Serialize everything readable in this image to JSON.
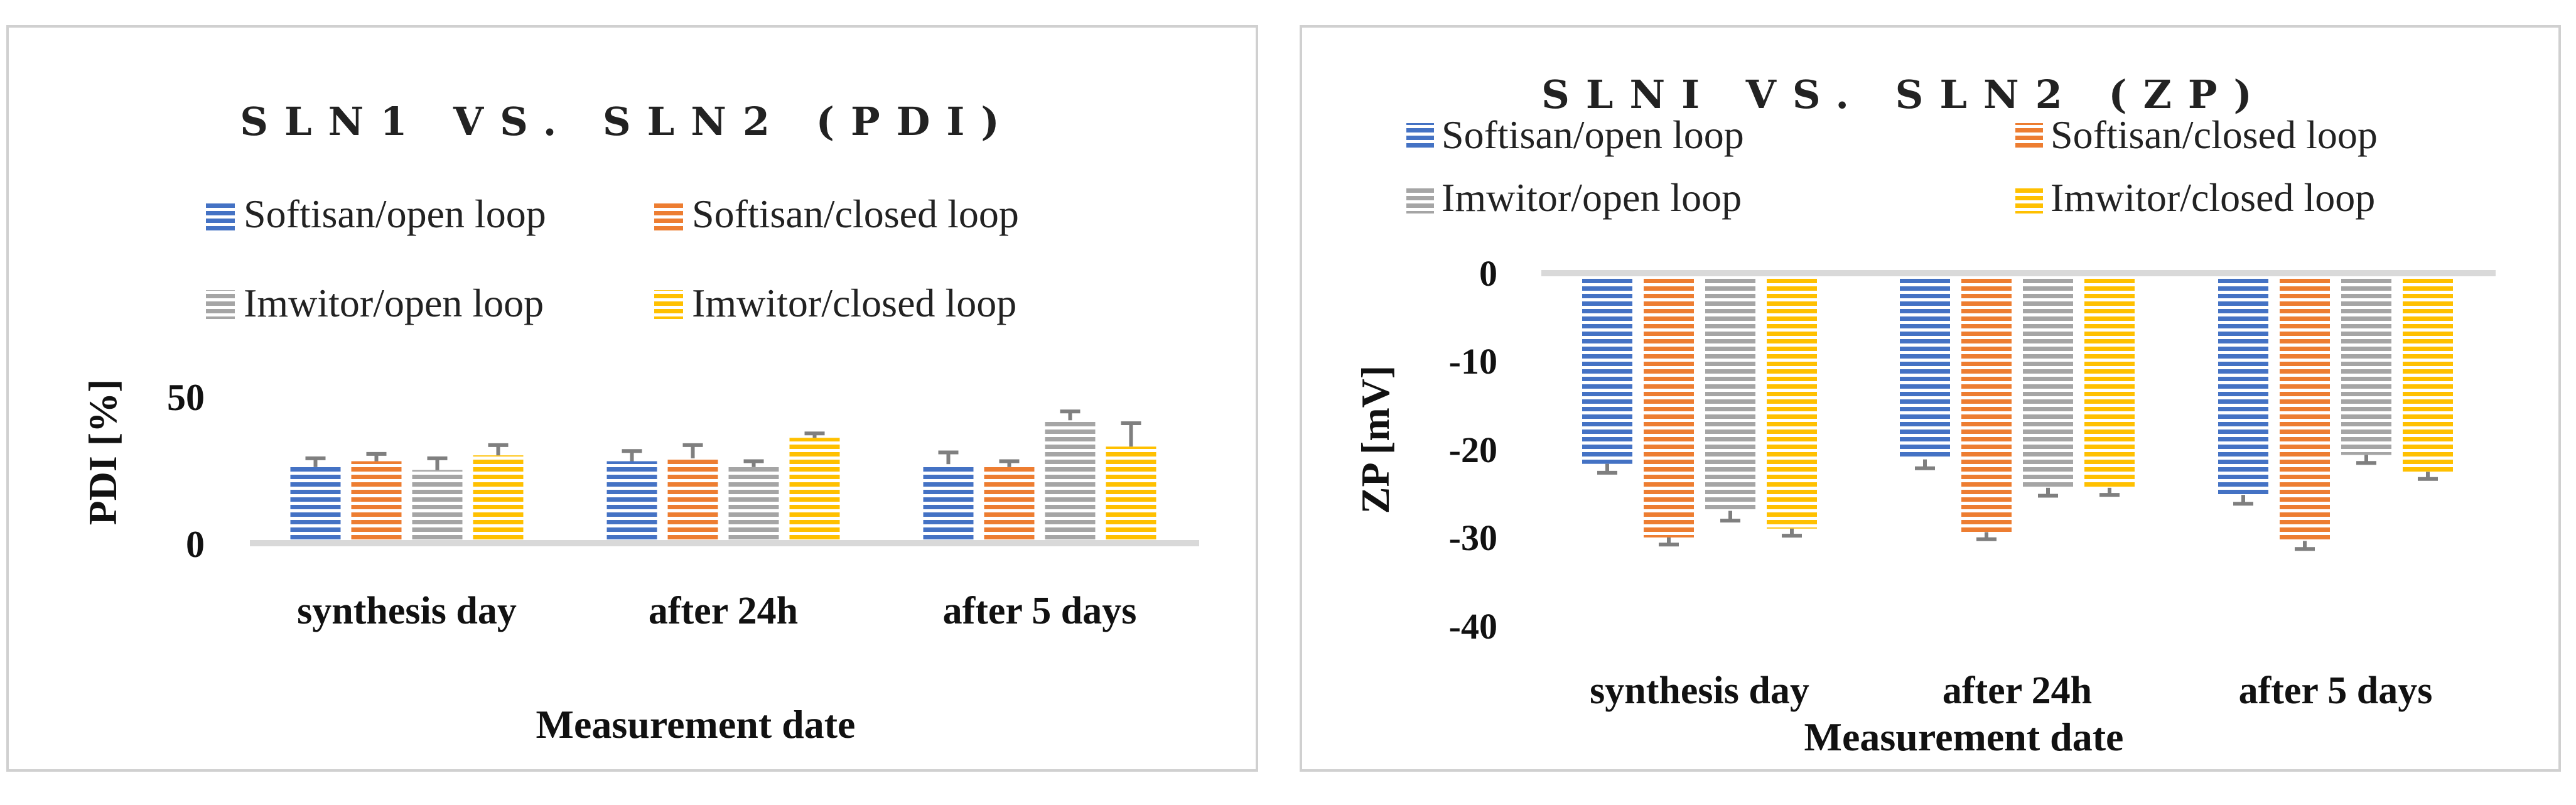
{
  "chart_data": [
    {
      "type": "bar",
      "title": "SLN1 VS. SLN2 (PDI)",
      "xlabel": "Measurement date",
      "ylabel": "PDI [%]",
      "ylim": [
        0,
        50
      ],
      "yticks": [
        "0",
        "50"
      ],
      "grid": false,
      "legend": "top",
      "categories": [
        "synthesis day",
        "after 24h",
        "after 5 days"
      ],
      "series": [
        {
          "name": "Softisan/open loop",
          "color": "#4472C4",
          "values": [
            26,
            28,
            27
          ],
          "errors": [
            3,
            3.5,
            4
          ]
        },
        {
          "name": "Softisan/closed loop",
          "color": "#ED7D31",
          "values": [
            28,
            29,
            26
          ],
          "errors": [
            2.5,
            4.5,
            2
          ]
        },
        {
          "name": "Imwitor/open loop",
          "color": "#A5A5A5",
          "values": [
            25,
            26,
            42
          ],
          "errors": [
            4,
            2,
            3
          ]
        },
        {
          "name": "Imwitor/closed loop",
          "color": "#FFC000",
          "values": [
            30,
            36,
            33
          ],
          "errors": [
            3.5,
            1.5,
            8
          ]
        }
      ]
    },
    {
      "type": "bar",
      "title": "SLNI VS. SLN2 (ZP)",
      "xlabel": "Measurement date",
      "ylabel": "ZP [mV]",
      "ylim": [
        -40,
        0
      ],
      "yticks": [
        "0",
        "-10",
        "-20",
        "-30",
        "-40"
      ],
      "grid": false,
      "legend": "top",
      "categories": [
        "synthesis day",
        "after 24h",
        "after 5 days"
      ],
      "series": [
        {
          "name": "Softisan/open loop",
          "color": "#4472C4",
          "values": [
            -21.5,
            -21,
            -25
          ],
          "errors": [
            1,
            1,
            1
          ]
        },
        {
          "name": "Softisan/closed loop",
          "color": "#ED7D31",
          "values": [
            -29.8,
            -29.2,
            -30.2
          ],
          "errors": [
            0.8,
            0.8,
            0.9
          ]
        },
        {
          "name": "Imwitor/open loop",
          "color": "#A5A5A5",
          "values": [
            -26.8,
            -24.2,
            -20.5
          ],
          "errors": [
            1.1,
            0.9,
            0.9
          ]
        },
        {
          "name": "Imwitor/closed loop",
          "color": "#FFC000",
          "values": [
            -28.8,
            -24.2,
            -22.4
          ],
          "errors": [
            0.8,
            0.8,
            0.8
          ]
        }
      ]
    }
  ]
}
